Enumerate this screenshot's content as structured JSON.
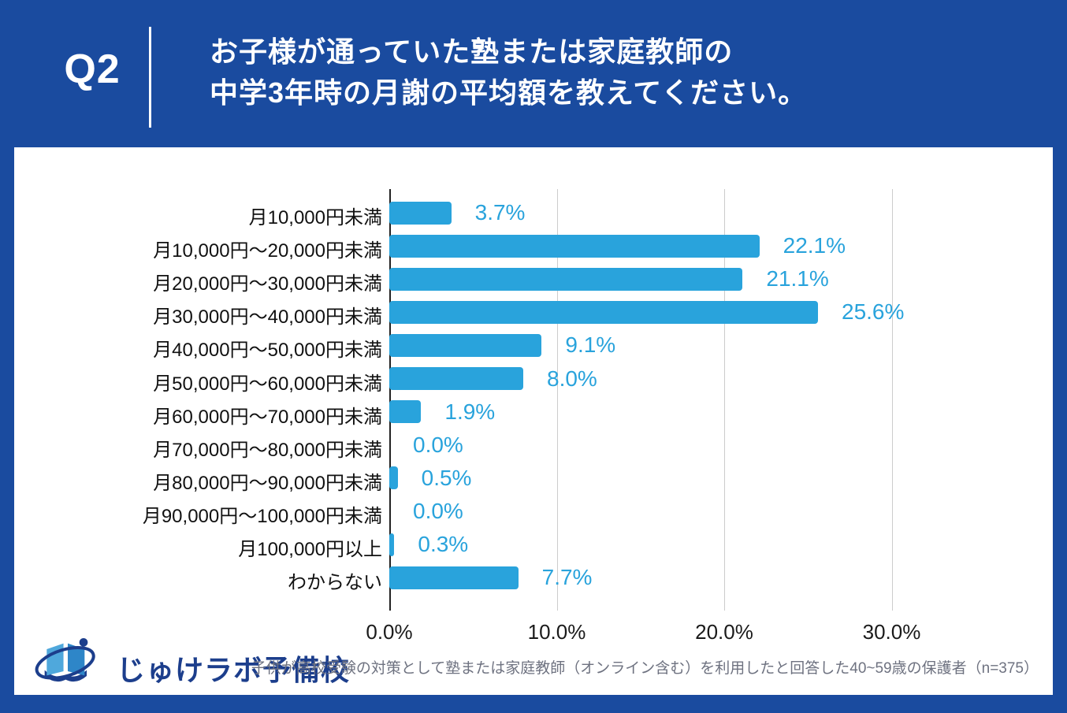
{
  "header": {
    "q_label": "Q2",
    "title_line1": "お子様が通っていた塾または家庭教師の",
    "title_line2": "中学3年時の月謝の平均額を教えてください。"
  },
  "chart_data": {
    "type": "bar",
    "orientation": "horizontal",
    "title": "お子様が通っていた塾または家庭教師の中学3年時の月謝の平均額を教えてください。",
    "categories": [
      "月10,000円未満",
      "月10,000円〜20,000円未満",
      "月20,000円〜30,000円未満",
      "月30,000円〜40,000円未満",
      "月40,000円〜50,000円未満",
      "月50,000円〜60,000円未満",
      "月60,000円〜70,000円未満",
      "月70,000円〜80,000円未満",
      "月80,000円〜90,000円未満",
      "月90,000円〜100,000円未満",
      "月100,000円以上",
      "わからない"
    ],
    "values": [
      3.7,
      22.1,
      21.1,
      25.6,
      9.1,
      8.0,
      1.9,
      0.0,
      0.5,
      0.0,
      0.3,
      7.7
    ],
    "value_labels": [
      "3.7%",
      "22.1%",
      "21.1%",
      "25.6%",
      "9.1%",
      "8.0%",
      "1.9%",
      "0.0%",
      "0.5%",
      "0.0%",
      "0.3%",
      "7.7%"
    ],
    "x_ticks": [
      0,
      10,
      20,
      30
    ],
    "x_tick_labels": [
      "0.0%",
      "10.0%",
      "20.0%",
      "30.0%"
    ],
    "xlim": [
      0,
      32
    ],
    "grid": true,
    "legend": false,
    "bar_color": "#29A3DC",
    "value_label_color": "#29A3DC"
  },
  "footer": {
    "logo_text": "じゅけラボ予備校",
    "note": "子供が高校受験の対策として塾または家庭教師（オンライン含む）を利用したと回答した40~59歳の保護者（n=375）"
  },
  "colors": {
    "background": "#1A4B9F",
    "card": "#FFFFFF",
    "bar": "#29A3DC",
    "logo_navy": "#1C3E8C"
  }
}
